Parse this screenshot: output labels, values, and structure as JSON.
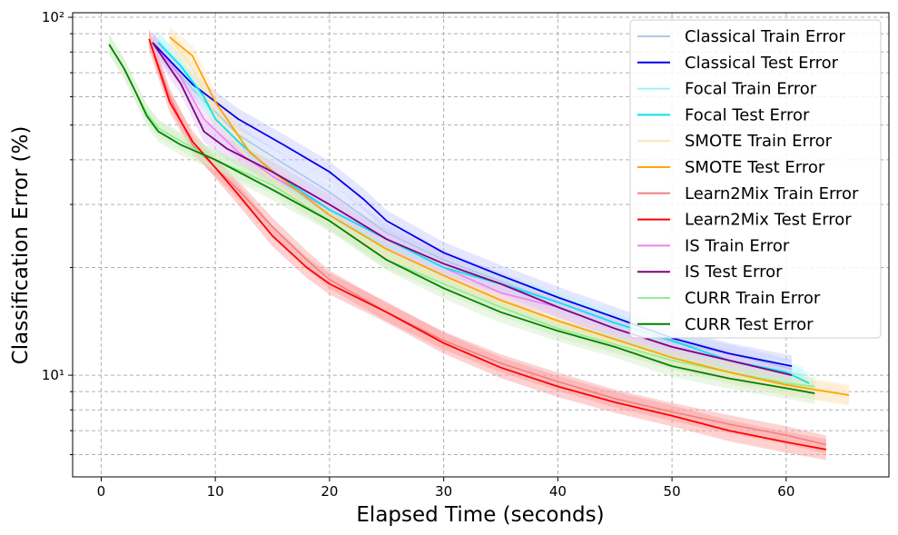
{
  "chart_data": {
    "type": "line",
    "xlabel": "Elapsed Time (seconds)",
    "ylabel": "Classification Error (%)",
    "xlim": [
      -2.5,
      69
    ],
    "ylim": [
      5.2,
      103
    ],
    "yscale": "log",
    "grid": true,
    "legend_position": "top-right",
    "x_ticks": [
      0,
      10,
      20,
      30,
      40,
      50,
      60
    ],
    "x_tick_labels": [
      "0",
      "10",
      "20",
      "30",
      "40",
      "50",
      "60"
    ],
    "y_ticks": [
      10,
      100
    ],
    "y_tick_labels": [
      "10¹",
      "10²"
    ],
    "series": [
      {
        "name": "Classical Train Error",
        "color": "#aec7e8",
        "band": "#c5d3ff",
        "kind": "train",
        "x": [
          4.5,
          8,
          12,
          16,
          20,
          25,
          30,
          35,
          40,
          45,
          50,
          55,
          60.5
        ],
        "y": [
          85,
          63,
          47,
          39,
          32.5,
          25,
          21,
          18.3,
          16,
          14,
          12.4,
          11.5,
          10.4
        ]
      },
      {
        "name": "Classical Test Error",
        "color": "#0000ee",
        "band": "#c5c8ff",
        "kind": "test",
        "x": [
          4.5,
          8,
          12,
          16,
          20,
          23,
          25,
          30,
          35,
          40,
          45,
          50,
          55,
          60.5
        ],
        "y": [
          85,
          65,
          52,
          44,
          37,
          31,
          27,
          22,
          19,
          16.5,
          14.5,
          12.7,
          11.5,
          10.6
        ]
      },
      {
        "name": "Focal Train Error",
        "color": "#a0f0f0",
        "band": "#c8fbfb",
        "kind": "train",
        "x": [
          5,
          7,
          9,
          12,
          15,
          20,
          25,
          30,
          35,
          40,
          45,
          50,
          55,
          61.5
        ],
        "y": [
          86,
          72,
          58,
          44,
          36,
          28,
          23,
          20,
          18,
          16,
          14,
          12,
          11,
          10
        ]
      },
      {
        "name": "Focal Test Error",
        "color": "#00e5ee",
        "band": "#bdf6f6",
        "kind": "test",
        "x": [
          5,
          7,
          9,
          10,
          12,
          15,
          20,
          25,
          30,
          35,
          40,
          45,
          50,
          55,
          60,
          62
        ],
        "y": [
          85,
          73,
          60,
          52,
          45,
          37,
          29,
          24,
          20,
          18,
          16,
          14,
          12.5,
          11,
          10.2,
          9.5
        ]
      },
      {
        "name": "SMOTE Train Error",
        "color": "#fde3b0",
        "band": "#fde8c0",
        "kind": "train",
        "x": [
          6,
          8,
          10,
          13,
          16,
          20,
          25,
          30,
          35,
          40,
          45,
          50,
          55,
          60,
          65.5
        ],
        "y": [
          88,
          72,
          53,
          40,
          33,
          27,
          21.5,
          18.5,
          16,
          14,
          12.3,
          11,
          10,
          9.3,
          8.8
        ]
      },
      {
        "name": "SMOTE Test Error",
        "color": "#ffa500",
        "band": "#fde6c4",
        "kind": "test",
        "x": [
          6,
          8,
          10,
          13,
          16,
          20,
          25,
          30,
          35,
          40,
          45,
          50,
          55,
          60,
          65.5
        ],
        "y": [
          88,
          78,
          58,
          42,
          35,
          28,
          22.5,
          19,
          16.2,
          14.2,
          12.6,
          11.2,
          10.2,
          9.4,
          8.8
        ]
      },
      {
        "name": "Learn2Mix Train Error",
        "color": "#f08080",
        "band": "#f6a0a0",
        "kind": "train",
        "x": [
          4.2,
          6,
          8,
          10,
          12,
          15,
          18,
          20,
          25,
          30,
          35,
          40,
          45,
          50,
          55,
          60,
          63.5
        ],
        "y": [
          87,
          60,
          44,
          38,
          33,
          26,
          21,
          18.5,
          15,
          12.5,
          10.8,
          9.6,
          8.6,
          7.9,
          7.3,
          6.8,
          6.4
        ]
      },
      {
        "name": "Learn2Mix Test Error",
        "color": "#ff0000",
        "band": "#ff9a9a",
        "kind": "test",
        "x": [
          4.2,
          6,
          8,
          10,
          12,
          15,
          18,
          20,
          25,
          30,
          35,
          40,
          45,
          50,
          55,
          60,
          63.5
        ],
        "y": [
          87,
          58,
          45,
          38,
          32,
          24.5,
          20,
          18,
          15,
          12.3,
          10.5,
          9.3,
          8.4,
          7.7,
          7,
          6.5,
          6.2
        ]
      },
      {
        "name": "IS Train Error",
        "color": "#ee82ee",
        "band": "#f7c8f7",
        "kind": "train",
        "x": [
          4.5,
          7,
          9,
          12,
          15,
          20,
          25,
          30,
          35,
          40,
          45,
          50,
          55,
          60.5
        ],
        "y": [
          85,
          68,
          52,
          42,
          36,
          29,
          24,
          20,
          17,
          15.5,
          13.5,
          12,
          11,
          10
        ]
      },
      {
        "name": "IS Test Error",
        "color": "#800080",
        "band": "#dcc4f2",
        "kind": "test",
        "x": [
          4.5,
          7,
          9,
          11,
          15,
          20,
          25,
          30,
          35,
          40,
          45,
          50,
          55,
          60.5
        ],
        "y": [
          85,
          65,
          48,
          43,
          37,
          30,
          24,
          20.5,
          18,
          15.5,
          13.5,
          12,
          11,
          10
        ]
      },
      {
        "name": "CURR Train Error",
        "color": "#90ee90",
        "band": "#cfeec4",
        "kind": "train",
        "x": [
          0.7,
          2,
          3,
          4,
          5,
          7,
          10,
          15,
          20,
          25,
          30,
          35,
          40,
          45,
          50,
          55,
          60,
          62.5
        ],
        "y": [
          84,
          72,
          62,
          54,
          49,
          45,
          40,
          34,
          27,
          21,
          18,
          15.5,
          13.5,
          12.2,
          11,
          10.2,
          9.5,
          9.3
        ]
      },
      {
        "name": "CURR Test Error",
        "color": "#008000",
        "band": "#cfeec4",
        "kind": "test",
        "x": [
          0.7,
          2,
          3,
          4,
          5,
          7,
          10,
          15,
          20,
          25,
          30,
          35,
          40,
          45,
          50,
          55,
          60,
          62.5
        ],
        "y": [
          84,
          72,
          62,
          53,
          48,
          44,
          40,
          33,
          27,
          21,
          17.5,
          15,
          13.3,
          12,
          10.6,
          9.8,
          9.2,
          8.9
        ]
      }
    ]
  }
}
